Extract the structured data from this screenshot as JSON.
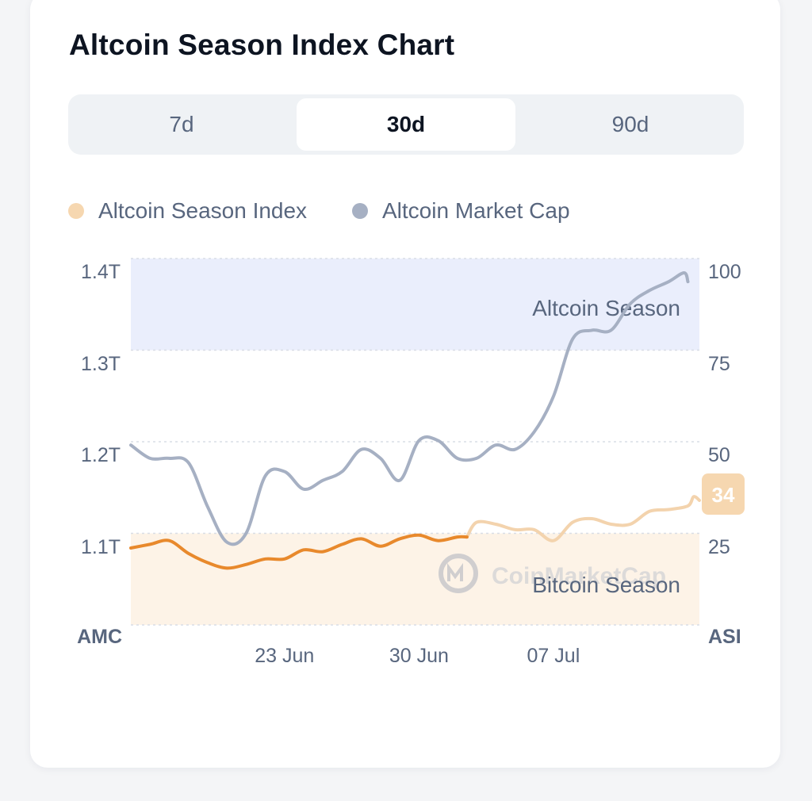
{
  "title": "Altcoin Season Index Chart",
  "tabs": [
    {
      "label": "7d",
      "active": false
    },
    {
      "label": "30d",
      "active": true
    },
    {
      "label": "90d",
      "active": false
    }
  ],
  "legend": [
    {
      "label": "Altcoin Season Index",
      "color": "#f6d7b0"
    },
    {
      "label": "Altcoin Market Cap",
      "color": "#a6b0c3"
    }
  ],
  "colors": {
    "asi_line": "#e8892c",
    "asi_line_faded": "#f3d3ad",
    "amc_line": "#a6b0c3",
    "altcoin_zone": "#eaeefc",
    "bitcoin_zone": "#fdf3e7",
    "badge_bg": "#f6d7b0"
  },
  "watermark": "CoinMarketCap",
  "chart_data": {
    "type": "line",
    "x_tick_labels": [
      "23 Jun",
      "30 Jun",
      "07 Jul"
    ],
    "x_tick_day_index": [
      8,
      15,
      22
    ],
    "left_axis": {
      "title": "AMC",
      "ticks": [
        "1.4T",
        "1.3T",
        "1.2T",
        "1.1T"
      ],
      "tick_values": [
        1.4,
        1.3,
        1.2,
        1.1
      ],
      "unit": "T",
      "range": [
        1.0,
        1.41
      ]
    },
    "right_axis": {
      "title": "ASI",
      "ticks": [
        "100",
        "75",
        "50",
        "25"
      ],
      "tick_values": [
        100,
        75,
        50,
        25
      ],
      "range": [
        0,
        100
      ]
    },
    "zones": [
      {
        "label": "Altcoin Season",
        "from": 75,
        "to": 100,
        "axis": "right"
      },
      {
        "label": "Bitcoin Season",
        "from": 0,
        "to": 25,
        "axis": "right"
      }
    ],
    "current_value": "34",
    "series": [
      {
        "name": "Altcoin Season Index",
        "axis": "right",
        "highlight_until_day": 17.5,
        "points": [
          [
            0,
            21
          ],
          [
            1,
            22
          ],
          [
            2,
            23
          ],
          [
            3,
            19.5
          ],
          [
            4,
            17
          ],
          [
            5,
            15.5
          ],
          [
            6,
            16.5
          ],
          [
            7,
            18
          ],
          [
            8,
            18
          ],
          [
            9,
            20.5
          ],
          [
            10,
            20
          ],
          [
            11,
            22
          ],
          [
            12,
            23.5
          ],
          [
            13,
            21.5
          ],
          [
            14,
            23.5
          ],
          [
            15,
            24.5
          ],
          [
            16,
            23
          ],
          [
            17,
            24
          ],
          [
            17.5,
            24
          ],
          [
            18,
            28
          ],
          [
            19,
            27.5
          ],
          [
            20,
            26
          ],
          [
            21,
            26
          ],
          [
            22,
            23
          ],
          [
            23,
            28
          ],
          [
            24,
            29
          ],
          [
            25,
            27.5
          ],
          [
            26,
            27.5
          ],
          [
            27,
            31
          ],
          [
            28,
            31.5
          ],
          [
            29,
            32.5
          ],
          [
            29.3,
            35
          ],
          [
            29.6,
            34
          ]
        ]
      },
      {
        "name": "Altcoin Market Cap",
        "axis": "left",
        "unit": "T",
        "points": [
          [
            0,
            1.2
          ],
          [
            1,
            1.185
          ],
          [
            2,
            1.185
          ],
          [
            3,
            1.18
          ],
          [
            4,
            1.13
          ],
          [
            5,
            1.09
          ],
          [
            6,
            1.1
          ],
          [
            7,
            1.165
          ],
          [
            8,
            1.17
          ],
          [
            9,
            1.15
          ],
          [
            10,
            1.16
          ],
          [
            11,
            1.17
          ],
          [
            12,
            1.195
          ],
          [
            13,
            1.185
          ],
          [
            14,
            1.16
          ],
          [
            15,
            1.205
          ],
          [
            16,
            1.205
          ],
          [
            17,
            1.185
          ],
          [
            18,
            1.185
          ],
          [
            19,
            1.2
          ],
          [
            20,
            1.195
          ],
          [
            21,
            1.215
          ],
          [
            22,
            1.255
          ],
          [
            23,
            1.32
          ],
          [
            24,
            1.33
          ],
          [
            25,
            1.33
          ],
          [
            26,
            1.36
          ],
          [
            27,
            1.375
          ],
          [
            28,
            1.385
          ],
          [
            28.8,
            1.395
          ],
          [
            29,
            1.385
          ]
        ]
      }
    ]
  }
}
